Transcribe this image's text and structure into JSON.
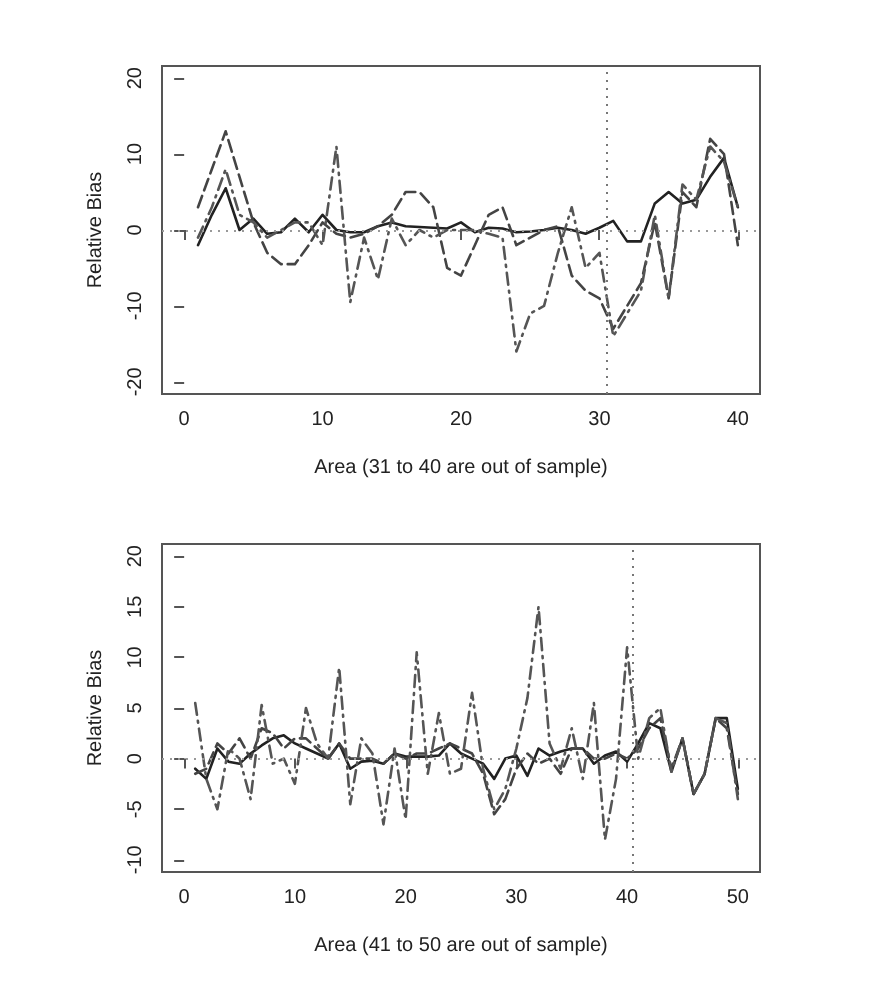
{
  "chart_data": [
    {
      "type": "line",
      "xlabel": "Area (31 to 40 are out of sample)",
      "ylabel": "Relative Bias",
      "x": [
        1,
        2,
        3,
        4,
        5,
        6,
        7,
        8,
        9,
        10,
        11,
        12,
        13,
        14,
        15,
        16,
        17,
        18,
        19,
        20,
        21,
        22,
        23,
        24,
        25,
        26,
        27,
        28,
        29,
        30,
        31,
        32,
        33,
        34,
        35,
        36,
        37,
        38,
        39,
        40
      ],
      "xlim": [
        -1.6,
        41.6
      ],
      "xticks": [
        0,
        10,
        20,
        30,
        40
      ],
      "ylim": [
        -21.6,
        21.6
      ],
      "yticks": [
        -20,
        -10,
        0,
        10,
        20
      ],
      "grid": false,
      "marker": "none",
      "series": [
        {
          "color": "#222222",
          "line_style": "solid",
          "values": [
            -2,
            2,
            5.5,
            0,
            1.5,
            -0.5,
            -0.3,
            1.5,
            -0.3,
            2,
            0,
            -0.3,
            -0.3,
            0.5,
            1,
            0.5,
            0.4,
            0.3,
            0.2,
            1,
            -0.3,
            0.3,
            0.2,
            -0.3,
            -0.2,
            0,
            0.3,
            0,
            -0.5,
            0.3,
            1.2,
            -1.5,
            -1.5,
            3.5,
            5,
            3.5,
            4,
            7,
            9.5,
            3
          ]
        },
        {
          "color": "#444444",
          "line_style": "dashed",
          "values": [
            3,
            8,
            13,
            7,
            1,
            -3,
            -4.5,
            -4.5,
            -2,
            1,
            -0.5,
            -1,
            -0.5,
            0.5,
            2,
            5,
            5,
            3,
            -5,
            -6,
            -2,
            2,
            3,
            -2,
            -1,
            0,
            0.5,
            -6,
            -8,
            -9,
            -13,
            -10,
            -7,
            1,
            -9,
            5,
            3,
            12,
            10,
            -2
          ]
        },
        {
          "color": "#555555",
          "line_style": "dashdot",
          "values": [
            -1,
            3,
            8,
            2,
            1,
            -1,
            0,
            1,
            1,
            -2,
            11,
            -9.5,
            -1,
            -6.5,
            1.5,
            -2,
            0,
            -1,
            0,
            0,
            0,
            -0.5,
            -1,
            -16,
            -11,
            -10,
            -3,
            3,
            -5,
            -3,
            -14,
            -11,
            -8,
            2,
            -9,
            6,
            4,
            11,
            9,
            3
          ]
        }
      ],
      "ref_lines": [
        {
          "axis": "y",
          "value": 0,
          "color": "#999999",
          "line_style": "dotted"
        },
        {
          "axis": "x",
          "value": 30.5,
          "color": "#777777",
          "line_style": "dotted"
        }
      ]
    },
    {
      "type": "line",
      "xlabel": "Area (41 to 50 are out of sample)",
      "ylabel": "Relative Bias",
      "x": [
        1,
        2,
        3,
        4,
        5,
        6,
        7,
        8,
        9,
        10,
        11,
        12,
        13,
        14,
        15,
        16,
        17,
        18,
        19,
        20,
        21,
        22,
        23,
        24,
        25,
        26,
        27,
        28,
        29,
        30,
        31,
        32,
        33,
        34,
        35,
        36,
        37,
        38,
        39,
        40,
        41,
        42,
        43,
        44,
        45,
        46,
        47,
        48,
        49,
        50
      ],
      "xlim": [
        -2,
        52
      ],
      "xticks": [
        0,
        10,
        20,
        30,
        40,
        50
      ],
      "ylim": [
        -11.2,
        21.2
      ],
      "yticks": [
        -10,
        -5,
        0,
        5,
        10,
        15,
        20
      ],
      "grid": false,
      "marker": "none",
      "series": [
        {
          "color": "#222222",
          "line_style": "solid",
          "values": [
            -1,
            -2,
            1,
            -0.3,
            -0.5,
            0.5,
            1.3,
            2,
            2.3,
            1.5,
            1,
            0.5,
            0,
            1.5,
            -1,
            -0.3,
            -0.2,
            -0.5,
            0.5,
            0.2,
            0.2,
            0.2,
            0.3,
            1.5,
            0.5,
            0,
            -0.5,
            -2,
            0,
            0.3,
            -1.7,
            1,
            0.3,
            0.7,
            1,
            1,
            -0.5,
            0.3,
            0.7,
            -0.3,
            1.5,
            3.5,
            3,
            -1.3,
            2,
            -3.5,
            -1.5,
            4,
            4,
            -3
          ]
        },
        {
          "color": "#444444",
          "line_style": "dashed",
          "values": [
            -1.5,
            -1,
            1.5,
            0.5,
            2,
            0,
            3,
            2.5,
            1,
            2,
            2,
            1,
            0,
            1.5,
            0,
            0,
            0,
            -0.5,
            0.5,
            0,
            0.5,
            0.5,
            1,
            1.5,
            1,
            0.5,
            -1.5,
            -5.5,
            -4,
            -1,
            0.5,
            -0.5,
            0,
            -1.5,
            1,
            1,
            0,
            0,
            0.5,
            0,
            1,
            3,
            4,
            -1,
            2,
            -3.5,
            -1.5,
            4,
            3,
            -3.5
          ]
        },
        {
          "color": "#555555",
          "line_style": "dashdot",
          "values": [
            5.5,
            -2,
            -5,
            1,
            0,
            -4,
            5.3,
            -0.5,
            0,
            -2.5,
            5,
            1.5,
            0,
            9,
            -4.5,
            2,
            0.5,
            -6.5,
            1,
            -6,
            10.5,
            -1.5,
            4.5,
            -1.5,
            -1,
            6.5,
            -1,
            -5,
            -3,
            1,
            6,
            15,
            1.5,
            -1,
            3,
            -2,
            5.5,
            -8,
            -2,
            11,
            0,
            4,
            5,
            -1.3,
            2,
            -3.5,
            -1.5,
            4,
            3.5,
            -4
          ]
        }
      ],
      "ref_lines": [
        {
          "axis": "y",
          "value": 0,
          "color": "#999999",
          "line_style": "dotted"
        },
        {
          "axis": "x",
          "value": 40.5,
          "color": "#777777",
          "line_style": "dotted"
        }
      ]
    }
  ]
}
